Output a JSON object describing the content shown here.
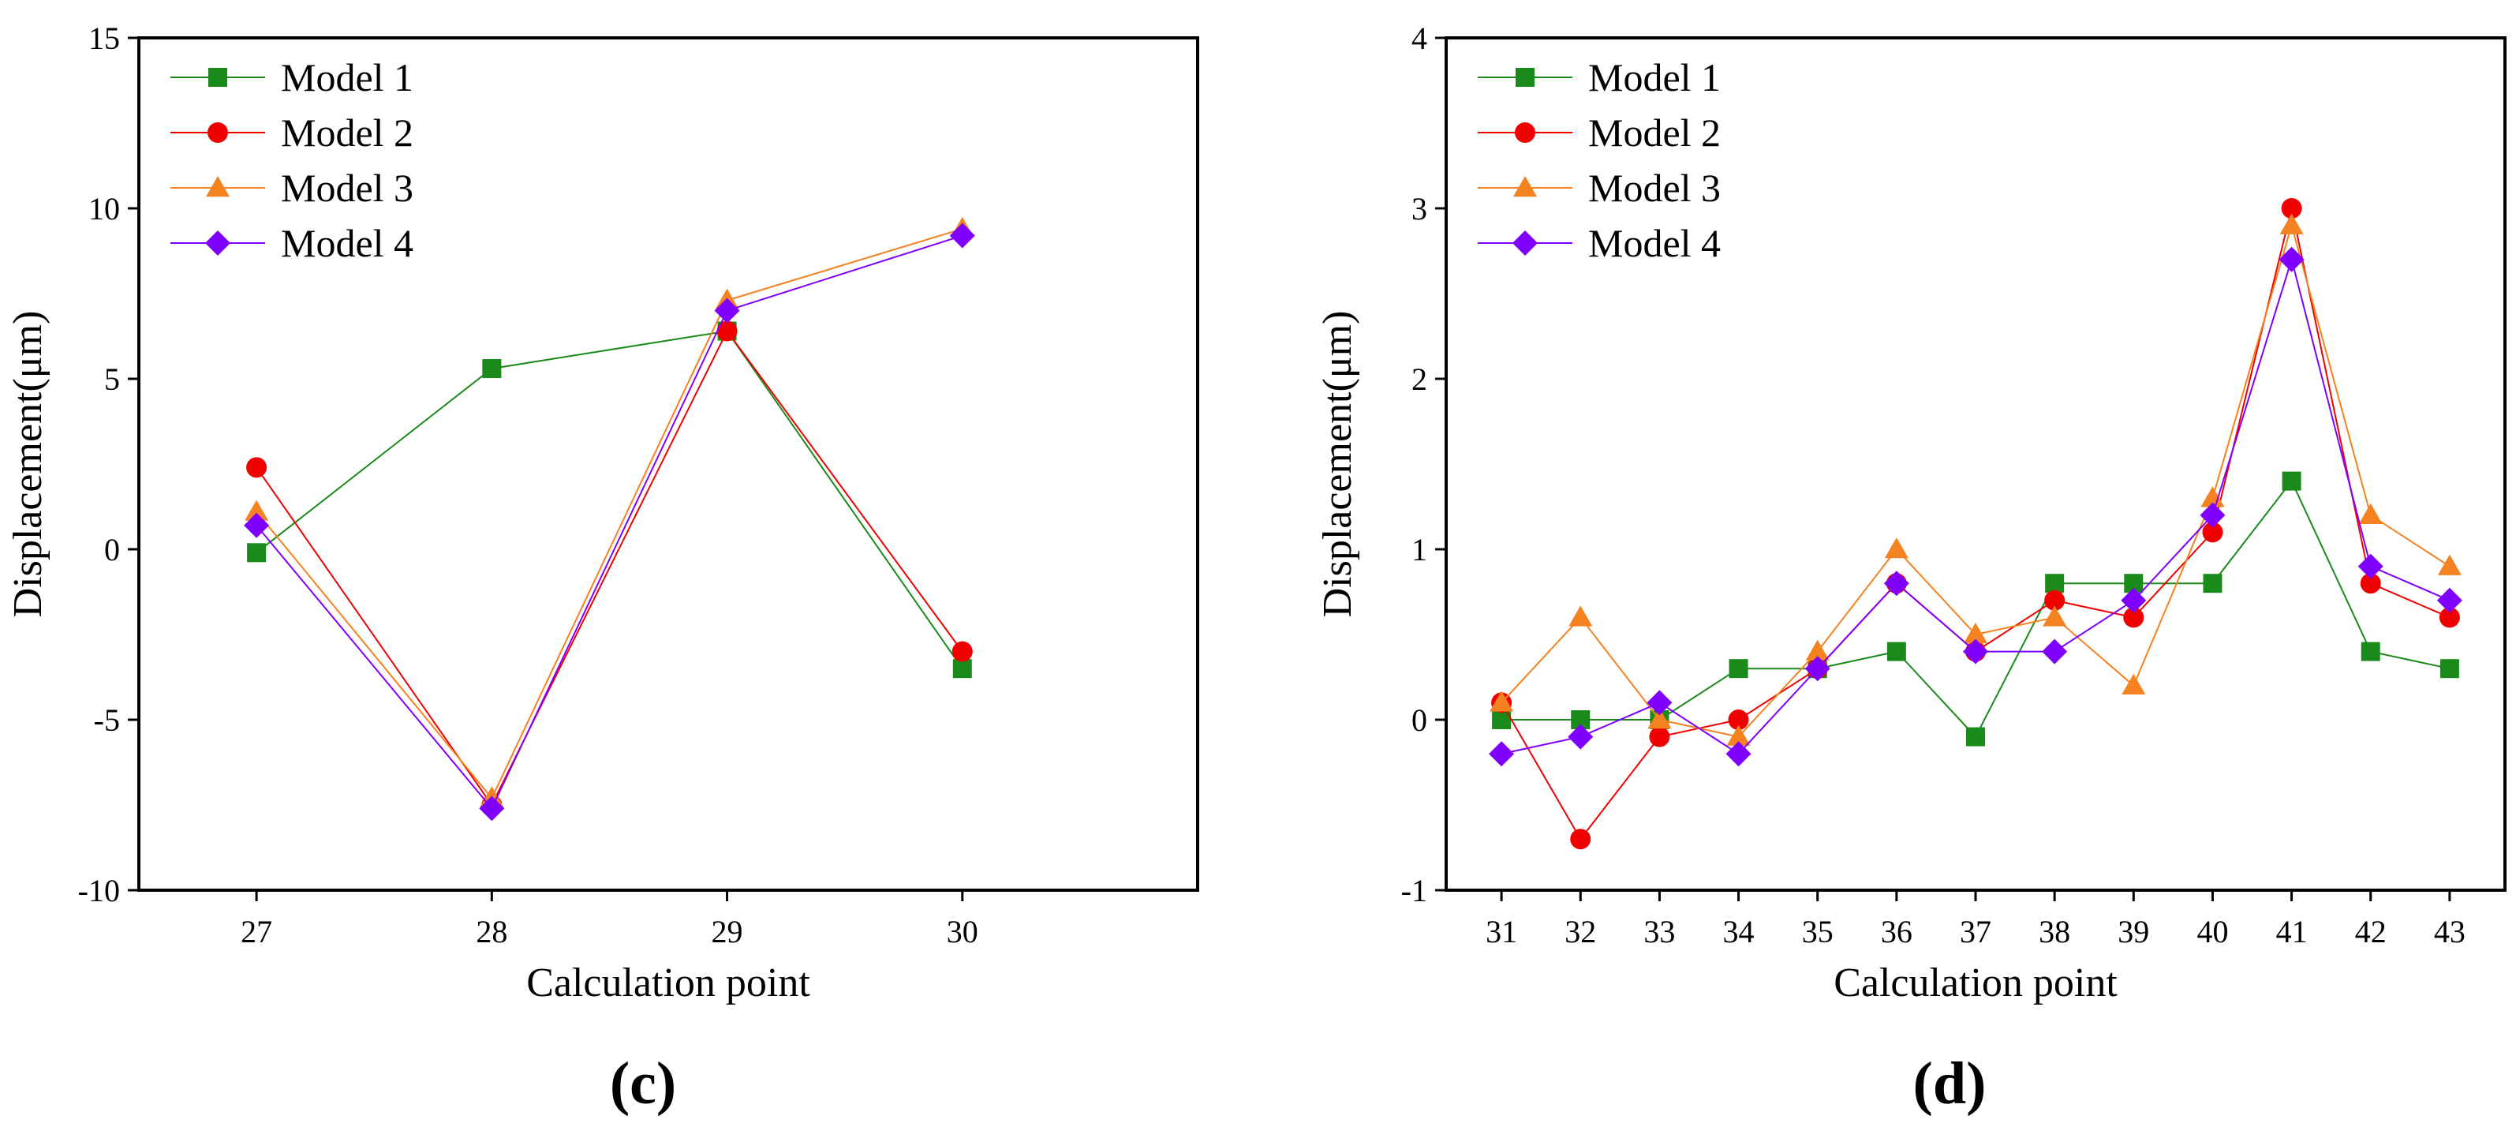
{
  "chart_data": [
    {
      "panel_label": "(c)",
      "type": "line",
      "xlabel": "Calculation point",
      "ylabel": "Displacement(μm)",
      "x": [
        27,
        28,
        29,
        30
      ],
      "xlim": [
        26.5,
        31
      ],
      "ylim": [
        -10,
        15
      ],
      "yticks": [
        -10,
        -5,
        0,
        5,
        10,
        15
      ],
      "ytick_labels": [
        "-10",
        "-5",
        "0",
        "5",
        "10",
        "15"
      ],
      "legend_position": "top-left",
      "series": [
        {
          "name": "Model 1",
          "color": "#1a8a1a",
          "marker": "square",
          "values": [
            -0.1,
            5.3,
            6.4,
            -3.5
          ]
        },
        {
          "name": "Model 2",
          "color": "#f00000",
          "marker": "circle",
          "values": [
            2.4,
            -7.5,
            6.4,
            -3.0
          ]
        },
        {
          "name": "Model 3",
          "color": "#f58220",
          "marker": "triangle",
          "values": [
            1.1,
            -7.3,
            7.3,
            9.4
          ]
        },
        {
          "name": "Model 4",
          "color": "#8000ff",
          "marker": "diamond",
          "values": [
            0.7,
            -7.6,
            7.0,
            9.2
          ]
        }
      ]
    },
    {
      "panel_label": "(d)",
      "type": "line",
      "xlabel": "Calculation point",
      "ylabel": "Displacement(μm)",
      "x": [
        31,
        32,
        33,
        34,
        35,
        36,
        37,
        38,
        39,
        40,
        41,
        42,
        43
      ],
      "xlim": [
        30.3,
        43.7
      ],
      "ylim": [
        -1,
        4
      ],
      "yticks": [
        -1,
        0,
        1,
        2,
        3,
        4
      ],
      "ytick_labels": [
        "-1",
        "0",
        "1",
        "2",
        "3",
        "4"
      ],
      "legend_position": "top-left",
      "series": [
        {
          "name": "Model 1",
          "color": "#1a8a1a",
          "marker": "square",
          "values": [
            0,
            0,
            0,
            0.3,
            0.3,
            0.4,
            -0.1,
            0.8,
            0.8,
            0.8,
            1.4,
            0.4,
            0.3
          ]
        },
        {
          "name": "Model 2",
          "color": "#f00000",
          "marker": "circle",
          "values": [
            0.1,
            -0.7,
            -0.1,
            0,
            0.3,
            0.8,
            0.4,
            0.7,
            0.6,
            1.1,
            3.0,
            0.8,
            0.6
          ]
        },
        {
          "name": "Model 3",
          "color": "#f58220",
          "marker": "triangle",
          "values": [
            0.1,
            0.6,
            0,
            -0.1,
            0.4,
            1.0,
            0.5,
            0.6,
            0.2,
            1.3,
            2.9,
            1.2,
            0.9
          ]
        },
        {
          "name": "Model 4",
          "color": "#8000ff",
          "marker": "diamond",
          "values": [
            -0.2,
            -0.1,
            0.1,
            -0.2,
            0.3,
            0.8,
            0.4,
            0.4,
            0.7,
            1.2,
            2.7,
            0.9,
            0.7
          ]
        }
      ]
    }
  ]
}
